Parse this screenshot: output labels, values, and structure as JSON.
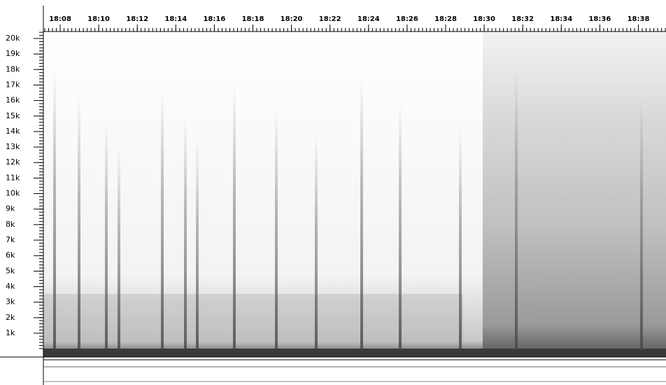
{
  "time_axis": {
    "labels": [
      "18:08",
      "18:10",
      "18:12",
      "18:14",
      "18:16",
      "18:18",
      "18:20",
      "18:22",
      "18:24",
      "18:26",
      "18:28",
      "18:30",
      "18:32",
      "18:34",
      "18:36",
      "18:38"
    ]
  },
  "frequency_axis": {
    "labels": [
      "1k",
      "2k",
      "3k",
      "4k",
      "5k",
      "6k",
      "7k",
      "8k",
      "9k",
      "10k",
      "11k",
      "12k",
      "13k",
      "14k",
      "15k",
      "16k",
      "17k",
      "18k",
      "19k",
      "20k"
    ]
  }
}
